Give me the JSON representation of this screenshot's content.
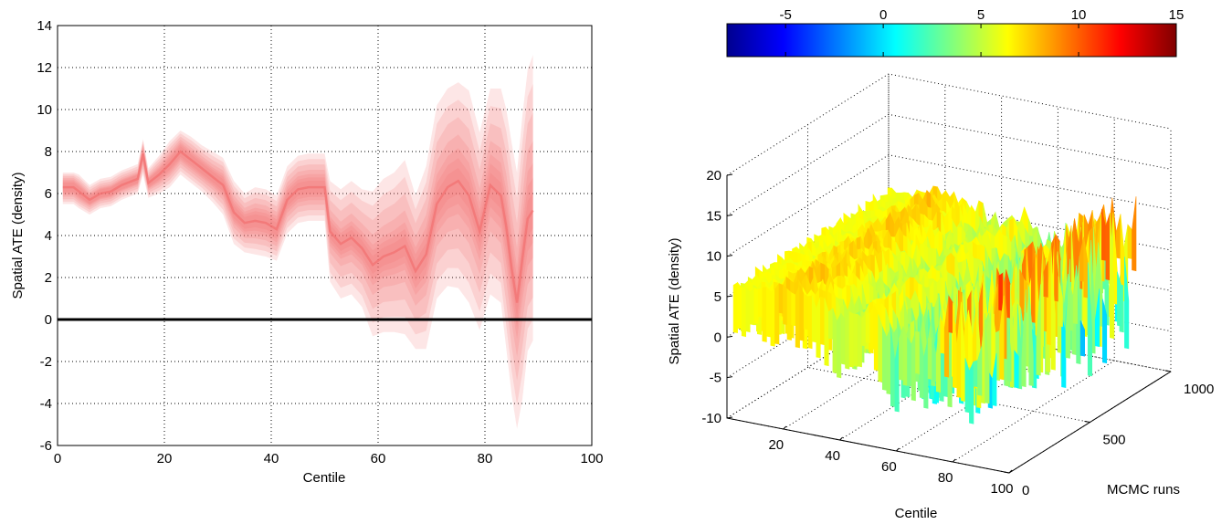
{
  "chart_data": [
    {
      "type": "area",
      "xlabel": "Centile",
      "ylabel": "Spatial ATE (density)",
      "xlim": [
        0,
        100
      ],
      "ylim": [
        -6,
        14
      ],
      "xticks": [
        0,
        20,
        40,
        60,
        80,
        100
      ],
      "yticks": [
        -6,
        -4,
        -2,
        0,
        2,
        4,
        6,
        8,
        10,
        12,
        14
      ],
      "grid": true,
      "reference_line_y": 0,
      "band_color": "#f26b6b",
      "x": [
        1,
        3,
        4,
        6,
        8,
        10,
        12,
        14,
        15,
        16,
        17,
        19,
        21,
        23,
        25,
        27,
        29,
        31,
        33,
        35,
        37,
        39,
        41,
        43,
        45,
        47,
        49,
        50,
        51,
        53,
        55,
        57,
        59,
        61,
        63,
        65,
        67,
        69,
        71,
        73,
        75,
        77,
        79,
        81,
        83,
        84,
        85,
        86,
        87,
        88,
        89
      ],
      "median": [
        6.3,
        6.3,
        6.1,
        5.7,
        6.0,
        6.1,
        6.4,
        6.6,
        6.7,
        7.9,
        6.5,
        6.9,
        7.4,
        8.0,
        7.6,
        7.2,
        6.8,
        6.4,
        5.1,
        4.6,
        4.7,
        4.6,
        4.3,
        5.7,
        6.2,
        6.3,
        6.3,
        6.3,
        4.2,
        3.6,
        3.9,
        3.4,
        2.6,
        3.0,
        3.2,
        3.5,
        2.3,
        3.1,
        5.5,
        6.3,
        6.6,
        5.9,
        4.2,
        6.4,
        5.9,
        4.4,
        2.4,
        0.8,
        2.9,
        4.8,
        5.2
      ],
      "band_50": [
        [
          5.9,
          6.7
        ],
        [
          5.9,
          6.7
        ],
        [
          5.7,
          6.5
        ],
        [
          5.4,
          6.0
        ],
        [
          5.7,
          6.3
        ],
        [
          5.8,
          6.4
        ],
        [
          6.1,
          6.7
        ],
        [
          6.3,
          6.9
        ],
        [
          6.4,
          7.0
        ],
        [
          7.4,
          8.3
        ],
        [
          6.2,
          6.8
        ],
        [
          6.5,
          7.3
        ],
        [
          6.9,
          7.9
        ],
        [
          7.5,
          8.5
        ],
        [
          7.1,
          8.1
        ],
        [
          6.7,
          7.7
        ],
        [
          6.3,
          7.3
        ],
        [
          5.8,
          7.0
        ],
        [
          4.5,
          5.8
        ],
        [
          4.0,
          5.2
        ],
        [
          4.0,
          5.4
        ],
        [
          3.9,
          5.3
        ],
        [
          3.6,
          5.0
        ],
        [
          5.0,
          6.4
        ],
        [
          5.5,
          6.9
        ],
        [
          5.6,
          7.0
        ],
        [
          5.6,
          7.0
        ],
        [
          5.6,
          7.0
        ],
        [
          3.4,
          5.0
        ],
        [
          2.8,
          4.4
        ],
        [
          3.0,
          4.8
        ],
        [
          2.5,
          4.3
        ],
        [
          1.5,
          3.7
        ],
        [
          1.9,
          4.1
        ],
        [
          2.0,
          4.4
        ],
        [
          2.2,
          4.8
        ],
        [
          1.0,
          3.6
        ],
        [
          1.6,
          4.6
        ],
        [
          3.9,
          7.1
        ],
        [
          4.6,
          8.0
        ],
        [
          4.8,
          8.4
        ],
        [
          4.1,
          7.7
        ],
        [
          2.6,
          5.8
        ],
        [
          4.7,
          8.1
        ],
        [
          4.1,
          7.7
        ],
        [
          2.4,
          6.4
        ],
        [
          0.4,
          4.4
        ],
        [
          -1.2,
          2.8
        ],
        [
          0.6,
          5.2
        ],
        [
          2.2,
          7.4
        ],
        [
          2.6,
          7.8
        ]
      ],
      "band_95": [
        [
          5.5,
          7.0
        ],
        [
          5.5,
          7.0
        ],
        [
          5.3,
          6.9
        ],
        [
          5.0,
          6.4
        ],
        [
          5.3,
          6.7
        ],
        [
          5.4,
          6.8
        ],
        [
          5.7,
          7.1
        ],
        [
          5.9,
          7.3
        ],
        [
          6.0,
          7.4
        ],
        [
          6.9,
          8.6
        ],
        [
          5.8,
          7.2
        ],
        [
          6.0,
          7.8
        ],
        [
          6.3,
          8.5
        ],
        [
          6.9,
          9.0
        ],
        [
          6.5,
          8.7
        ],
        [
          6.1,
          8.3
        ],
        [
          5.6,
          8.0
        ],
        [
          5.0,
          7.7
        ],
        [
          3.6,
          6.6
        ],
        [
          3.2,
          6.0
        ],
        [
          3.1,
          6.3
        ],
        [
          3.0,
          6.2
        ],
        [
          2.8,
          5.9
        ],
        [
          4.1,
          7.3
        ],
        [
          4.6,
          7.8
        ],
        [
          4.7,
          7.9
        ],
        [
          4.7,
          7.9
        ],
        [
          4.7,
          7.9
        ],
        [
          1.8,
          6.6
        ],
        [
          1.0,
          6.2
        ],
        [
          1.2,
          6.6
        ],
        [
          0.6,
          6.2
        ],
        [
          -0.8,
          6.1
        ],
        [
          -0.6,
          6.7
        ],
        [
          -0.6,
          7.0
        ],
        [
          -0.7,
          7.6
        ],
        [
          -1.4,
          5.9
        ],
        [
          -1.4,
          7.3
        ],
        [
          1.0,
          10.2
        ],
        [
          1.6,
          11.0
        ],
        [
          1.5,
          11.3
        ],
        [
          0.8,
          10.9
        ],
        [
          -0.5,
          8.9
        ],
        [
          1.2,
          11.0
        ],
        [
          0.8,
          11.0
        ],
        [
          -1.4,
          10.0
        ],
        [
          -3.6,
          8.4
        ],
        [
          -5.2,
          7.0
        ],
        [
          -3.8,
          9.7
        ],
        [
          -1.5,
          11.9
        ],
        [
          -1.0,
          12.6
        ]
      ]
    },
    {
      "type": "surface",
      "xlabel": "Centile",
      "ylabel": "MCMC runs",
      "zlabel": "Spatial ATE (density)",
      "xlim": [
        0,
        100
      ],
      "ylim": [
        0,
        1000
      ],
      "zlim": [
        -10,
        20
      ],
      "xticks": [
        20,
        40,
        60,
        80,
        100
      ],
      "yticks": [
        0,
        500,
        1000
      ],
      "zticks": [
        -10,
        -5,
        0,
        5,
        10,
        15,
        20
      ],
      "grid": true,
      "colormap": "jet",
      "colorbar": {
        "location": "top",
        "ticks": [
          -5,
          0,
          5,
          10,
          15
        ],
        "range": [
          -8,
          15
        ]
      },
      "x": [
        1,
        10,
        20,
        30,
        40,
        50,
        60,
        70,
        80,
        89
      ],
      "z_mean": [
        6.3,
        6.1,
        7.5,
        6.4,
        4.6,
        6.3,
        2.6,
        4.4,
        6.0,
        4.8
      ],
      "z_spread": [
        0.5,
        0.5,
        1.0,
        1.2,
        1.2,
        1.0,
        3.0,
        4.0,
        5.0,
        7.0
      ]
    }
  ]
}
